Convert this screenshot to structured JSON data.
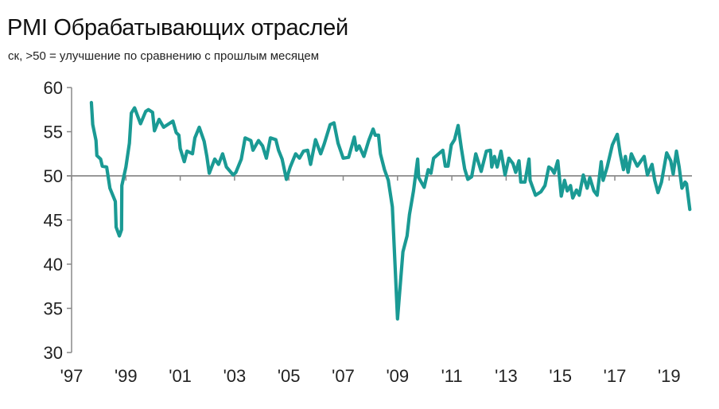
{
  "chart_data": {
    "type": "line",
    "title": "PMI Обрабатывающих отраслей",
    "subtitle": "ск, >50 = улучшение по сравнению с прошлым месяцем",
    "xlabel": "",
    "ylabel": "",
    "ylim": [
      30,
      60
    ],
    "xlim": [
      1997,
      2020
    ],
    "yticks": [
      "60",
      "55",
      "50",
      "45",
      "40",
      "35",
      "30"
    ],
    "ytick_values": [
      60,
      55,
      50,
      45,
      40,
      35,
      30
    ],
    "xticks": [
      "'97",
      "'99",
      "'01",
      "'03",
      "'05",
      "'07",
      "'09",
      "'11",
      "'13",
      "'15",
      "'17",
      "'19"
    ],
    "xtick_values": [
      1997,
      1999,
      2001,
      2003,
      2005,
      2007,
      2009,
      2011,
      2013,
      2015,
      2017,
      2019
    ],
    "reference_line": 50,
    "grid": false,
    "line_color": "#1a9a94",
    "series": [
      {
        "name": "PMI",
        "x": [
          1997.73,
          1997.78,
          1997.9,
          1997.93,
          1998.07,
          1998.13,
          1998.29,
          1998.41,
          1998.61,
          1998.64,
          1998.76,
          1998.84,
          1998.85,
          1999.0,
          1999.13,
          1999.2,
          1999.32,
          1999.54,
          1999.73,
          1999.83,
          1999.98,
          2000.05,
          2000.22,
          2000.39,
          2000.73,
          2000.85,
          2000.95,
          2001.0,
          2001.15,
          2001.25,
          2001.45,
          2001.54,
          2001.7,
          2001.88,
          2001.98,
          2002.07,
          2002.27,
          2002.41,
          2002.56,
          2002.7,
          2002.95,
          2003.05,
          2003.25,
          2003.39,
          2003.6,
          2003.68,
          2003.88,
          2004.03,
          2004.17,
          2004.32,
          2004.52,
          2004.62,
          2004.75,
          2004.91,
          2005.05,
          2005.25,
          2005.39,
          2005.54,
          2005.69,
          2005.8,
          2005.98,
          2006.17,
          2006.3,
          2006.52,
          2006.66,
          2006.81,
          2007.0,
          2007.2,
          2007.41,
          2007.49,
          2007.59,
          2007.76,
          2007.94,
          2008.1,
          2008.18,
          2008.3,
          2008.37,
          2008.52,
          2008.66,
          2008.81,
          2008.91,
          2009.0,
          2009.2,
          2009.35,
          2009.44,
          2009.59,
          2009.74,
          2009.78,
          2009.98,
          2010.13,
          2010.23,
          2010.33,
          2010.48,
          2010.67,
          2010.76,
          2010.86,
          2010.98,
          2011.1,
          2011.23,
          2011.35,
          2011.47,
          2011.59,
          2011.73,
          2011.88,
          2012.08,
          2012.27,
          2012.42,
          2012.47,
          2012.57,
          2012.67,
          2012.81,
          2012.96,
          2013.1,
          2013.25,
          2013.35,
          2013.47,
          2013.54,
          2013.69,
          2013.84,
          2013.88,
          2014.08,
          2014.28,
          2014.43,
          2014.57,
          2014.67,
          2014.77,
          2014.9,
          2015.03,
          2015.15,
          2015.25,
          2015.37,
          2015.45,
          2015.59,
          2015.69,
          2015.84,
          2015.98,
          2016.08,
          2016.23,
          2016.35,
          2016.5,
          2016.57,
          2016.72,
          2016.91,
          2017.09,
          2017.2,
          2017.32,
          2017.39,
          2017.49,
          2017.61,
          2017.73,
          2017.83,
          2018.08,
          2018.2,
          2018.37,
          2018.47,
          2018.59,
          2018.72,
          2018.91,
          2019.06,
          2019.15,
          2019.27,
          2019.37,
          2019.47,
          2019.59,
          2019.64,
          2019.76
        ],
        "values": [
          58.3,
          55.8,
          54.0,
          52.3,
          51.9,
          51.1,
          51.0,
          48.6,
          47.1,
          44.2,
          43.2,
          43.9,
          48.9,
          51.0,
          53.7,
          57.1,
          57.7,
          55.9,
          57.3,
          57.5,
          57.2,
          55.1,
          56.4,
          55.5,
          56.2,
          54.9,
          54.6,
          53.1,
          51.6,
          52.8,
          52.5,
          54.3,
          55.5,
          53.9,
          52.2,
          50.3,
          51.9,
          51.3,
          52.5,
          51.0,
          50.1,
          50.4,
          51.9,
          54.3,
          54.0,
          52.9,
          54.0,
          53.4,
          52.0,
          54.3,
          54.1,
          52.9,
          51.9,
          49.6,
          51.0,
          52.5,
          52.0,
          52.8,
          52.9,
          51.3,
          54.1,
          52.5,
          53.6,
          55.8,
          56.0,
          53.7,
          52.0,
          52.1,
          54.4,
          52.9,
          53.4,
          52.2,
          54.0,
          55.3,
          54.6,
          54.6,
          52.5,
          50.7,
          49.5,
          46.5,
          39.9,
          33.8,
          41.4,
          43.2,
          45.6,
          48.3,
          51.9,
          49.8,
          48.7,
          50.7,
          50.3,
          52.0,
          52.4,
          52.9,
          51.1,
          51.1,
          53.5,
          54.1,
          55.7,
          53.1,
          50.8,
          49.6,
          49.9,
          52.5,
          50.5,
          52.8,
          52.9,
          51.0,
          52.2,
          51.0,
          52.8,
          50.1,
          52.0,
          51.4,
          50.4,
          51.7,
          49.3,
          49.3,
          51.9,
          49.5,
          47.8,
          48.2,
          48.9,
          51.0,
          50.8,
          50.3,
          51.7,
          47.7,
          49.5,
          48.3,
          48.9,
          47.5,
          48.4,
          47.8,
          50.1,
          48.6,
          49.8,
          48.3,
          47.8,
          51.6,
          49.5,
          51.0,
          53.5,
          54.7,
          52.5,
          50.7,
          52.2,
          50.4,
          52.5,
          51.7,
          51.1,
          52.2,
          50.1,
          51.3,
          49.5,
          48.1,
          49.3,
          52.6,
          51.7,
          50.2,
          52.8,
          51.0,
          48.6,
          49.3,
          49.1,
          46.2
        ]
      }
    ]
  }
}
